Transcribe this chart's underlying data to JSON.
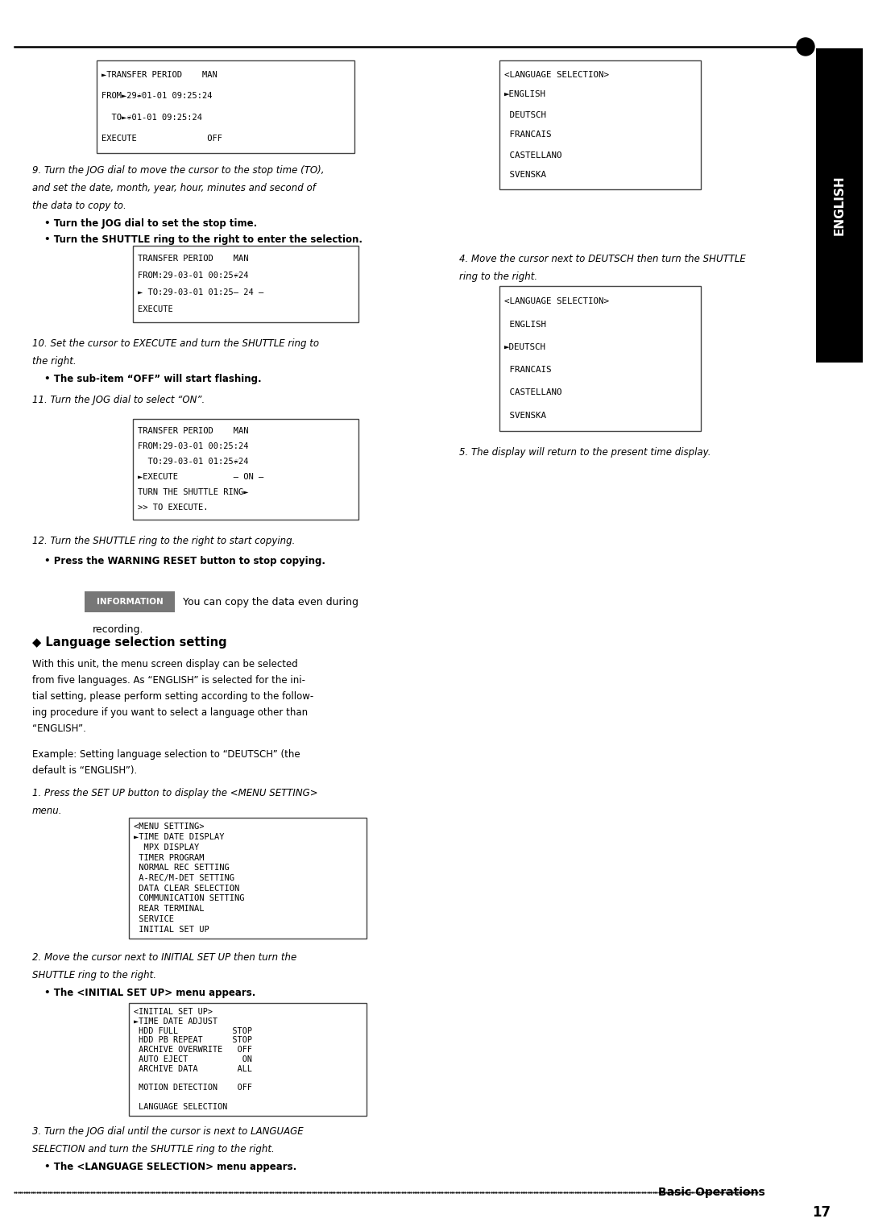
{
  "page_number": "17",
  "section_label": "ENGLISH",
  "footer_text": "Basic Operations",
  "screen1_lines": [
    "►TRANSFER PERIOD    MAN",
    "FROM►29☔01-01 09:25:24",
    "  TO►☔01-01 09:25:24",
    "EXECUTE              OFF"
  ],
  "screen_lang1_lines": [
    "<LANGUAGE SELECTION>",
    "►ENGLISH",
    " DEUTSCH",
    " FRANCAIS",
    " CASTELLANO",
    " SVENSKA"
  ],
  "para9_lines_italic": [
    "9. Turn the JOG dial to move the cursor to the stop time (TO),",
    "and set the date, month, year, hour, minutes and second of",
    "the data to copy to."
  ],
  "para9_lines_bold": [
    "• Turn the JOG dial to set the stop time.",
    "• Turn the SHUTTLE ring to the right to enter the selection."
  ],
  "screen2_lines": [
    "TRANSFER PERIOD    MAN",
    "FROM:29-03-01 00:25☔24",
    "► TO:29-03-01 01:25— 24 —",
    "EXECUTE"
  ],
  "para4_lines": [
    "4. Move the cursor next to DEUTSCH then turn the SHUTTLE",
    "ring to the right."
  ],
  "screen_lang2_lines": [
    "<LANGUAGE SELECTION>",
    " ENGLISH",
    "►DEUTSCH",
    " FRANCAIS",
    " CASTELLANO",
    " SVENSKA"
  ],
  "para10_lines_italic": [
    "10. Set the cursor to EXECUTE and turn the SHUTTLE ring to",
    "the right."
  ],
  "para10_lines_bold": [
    "• The sub-item “OFF” will start flashing."
  ],
  "para11_italic": "11. Turn the JOG dial to select “ON”.",
  "screen3_lines": [
    "TRANSFER PERIOD    MAN",
    "FROM:29-03-01 00:25:24",
    "  TO:29-03-01 01:25☔24",
    "►EXECUTE           — ON —",
    "TURN THE SHUTTLE RING►",
    ">> TO EXECUTE."
  ],
  "para5_italic": "5. The display will return to the present time display.",
  "para12_italic": "12. Turn the SHUTTLE ring to the right to start copying.",
  "para12_bold": "• Press the WARNING RESET button to stop copying.",
  "info_text1": "You can copy the data even during",
  "info_text2": "recording.",
  "lang_heading": "◆ Language selection setting",
  "lang_body_lines": [
    "With this unit, the menu screen display can be selected",
    "from five languages. As “ENGLISH” is selected for the ini-",
    "tial setting, please perform setting according to the follow-",
    "ing procedure if you want to select a language other than",
    "“ENGLISH”."
  ],
  "example_lines": [
    "Example: Setting language selection to “DEUTSCH” (the",
    "default is “ENGLISH”)."
  ],
  "para1_lines": [
    "1. Press the SET UP button to display the <MENU SETTING>",
    "menu."
  ],
  "screen_menu_lines": [
    "<MENU SETTING>",
    "►TIME DATE DISPLAY",
    "  MPX DISPLAY",
    " TIMER PROGRAM",
    " NORMAL REC SETTING",
    " A-REC/M-DET SETTING",
    " DATA CLEAR SELECTION",
    " COMMUNICATION SETTING",
    " REAR TERMINAL",
    " SERVICE",
    " INITIAL SET UP"
  ],
  "para2_lines_italic": [
    "2. Move the cursor next to INITIAL SET UP then turn the",
    "SHUTTLE ring to the right."
  ],
  "para2_bold": "• The <INITIAL SET UP> menu appears.",
  "screen_init_lines": [
    "<INITIAL SET UP>",
    "►TIME DATE ADJUST",
    " HDD FULL           STOP",
    " HDD PB REPEAT      STOP",
    " ARCHIVE OVERWRITE   OFF",
    " AUTO EJECT           ON",
    " ARCHIVE DATA        ALL",
    "",
    " MOTION DETECTION    OFF",
    "",
    " LANGUAGE SELECTION"
  ],
  "para3_lines_italic": [
    "3. Turn the JOG dial until the cursor is next to LANGUAGE",
    "SELECTION and turn the SHUTTLE ring to the right."
  ],
  "para3_bold": "• The <LANGUAGE SELECTION> menu appears."
}
